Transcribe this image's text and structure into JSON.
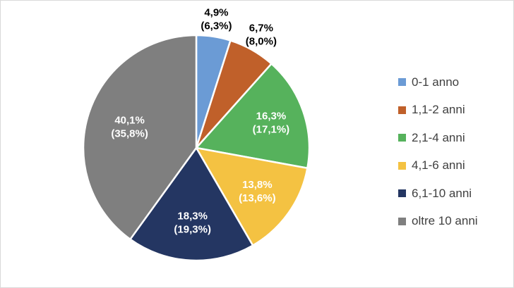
{
  "chart_data": {
    "type": "pie",
    "categories": [
      "0-1 anno",
      "1,1-2 anni",
      "2,1-4 anni",
      "4,1-6 anni",
      "6,1-10 anni",
      "oltre 10 anni"
    ],
    "values": [
      4.9,
      6.7,
      16.3,
      13.8,
      18.3,
      40.1
    ],
    "secondary_values": [
      6.3,
      8.0,
      17.1,
      13.6,
      19.3,
      35.8
    ],
    "labels": [
      {
        "line1": "4,9%",
        "line2": "(6,3%)"
      },
      {
        "line1": "6,7%",
        "line2": "(8,0%)"
      },
      {
        "line1": "16,3%",
        "line2": "(17,1%)"
      },
      {
        "line1": "13,8%",
        "line2": "(13,6%)"
      },
      {
        "line1": "18,3%",
        "line2": "(19,3%)"
      },
      {
        "line1": "40,1%",
        "line2": "(35,8%)"
      }
    ],
    "colors": [
      "#6b9bd5",
      "#c0602a",
      "#56b25c",
      "#f4c242",
      "#243662",
      "#7f7f7f"
    ],
    "label_colors": [
      "#000000",
      "#000000",
      "#ffffff",
      "#ffffff",
      "#ffffff",
      "#ffffff"
    ],
    "legend_position": "right",
    "start_angle": "top, clockwise"
  }
}
